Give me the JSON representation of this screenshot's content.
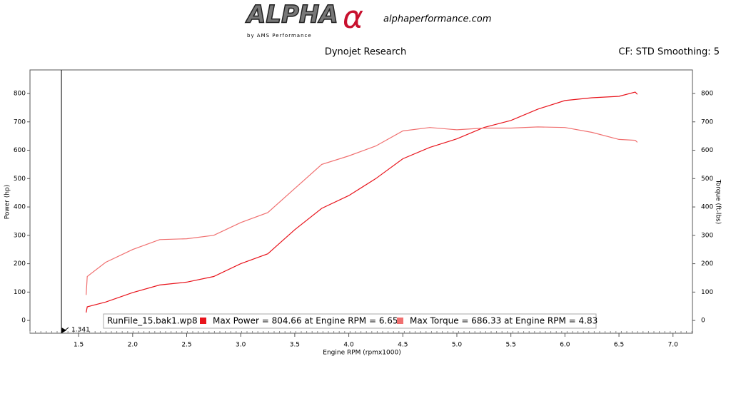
{
  "logo": {
    "text": "ALPHA",
    "symbol": "α",
    "tagline": "by AMS Performance",
    "site": "alphaperformance.com"
  },
  "chart_data": {
    "type": "line",
    "title": "Dynojet Research",
    "subtitle": "CF: STD Smoothing: 5",
    "xlabel": "Engine RPM (rpmx1000)",
    "ylabel": "Power (hp)",
    "y2label": "Torque (ft-lbs)",
    "x": [
      1.57,
      1.58,
      1.75,
      2.0,
      2.25,
      2.5,
      2.75,
      3.0,
      3.25,
      3.5,
      3.75,
      4.0,
      4.25,
      4.5,
      4.75,
      5.0,
      5.25,
      5.5,
      5.75,
      6.0,
      6.25,
      6.5,
      6.65,
      6.67
    ],
    "series": [
      {
        "name": "Max Power = 804.66 at Engine RPM = 6.65",
        "color": "#e8141c",
        "values": [
          28,
          48,
          65,
          98,
          125,
          135,
          155,
          200,
          235,
          320,
          395,
          440,
          500,
          570,
          610,
          640,
          680,
          705,
          745,
          775,
          785,
          790,
          805,
          797
        ]
      },
      {
        "name": "Max Torque = 686.33 at Engine RPM = 4.83",
        "color": "#f07070",
        "axis": "y2",
        "values": [
          90,
          155,
          205,
          250,
          285,
          288,
          300,
          345,
          380,
          465,
          550,
          580,
          615,
          668,
          680,
          672,
          678,
          678,
          682,
          680,
          663,
          638,
          635,
          628
        ]
      }
    ],
    "legend_title": "RunFile_15.bak1.wp8",
    "legend": "bottom",
    "cursor": 1.341,
    "xlim": [
      1.05,
      7.18
    ],
    "xticks": [
      1.5,
      {
        "value": 2,
        "label": "2.0"
      },
      2.5,
      {
        "value": 3,
        "label": "3.0"
      },
      3.5,
      {
        "value": 4,
        "label": "4.0"
      },
      4.5,
      {
        "value": 5,
        "label": "5.0"
      },
      5.5,
      {
        "value": 6,
        "label": "6.0"
      },
      6.5,
      {
        "value": 7,
        "label": "7.0"
      }
    ],
    "ylim": [
      -45,
      883
    ],
    "yticks": [
      0,
      100,
      200,
      300,
      400,
      500,
      600,
      700,
      800
    ],
    "y2lim": [
      -45,
      883
    ],
    "y2ticks": [
      0,
      100,
      200,
      300,
      400,
      500,
      600,
      700,
      800
    ],
    "grid": false
  }
}
